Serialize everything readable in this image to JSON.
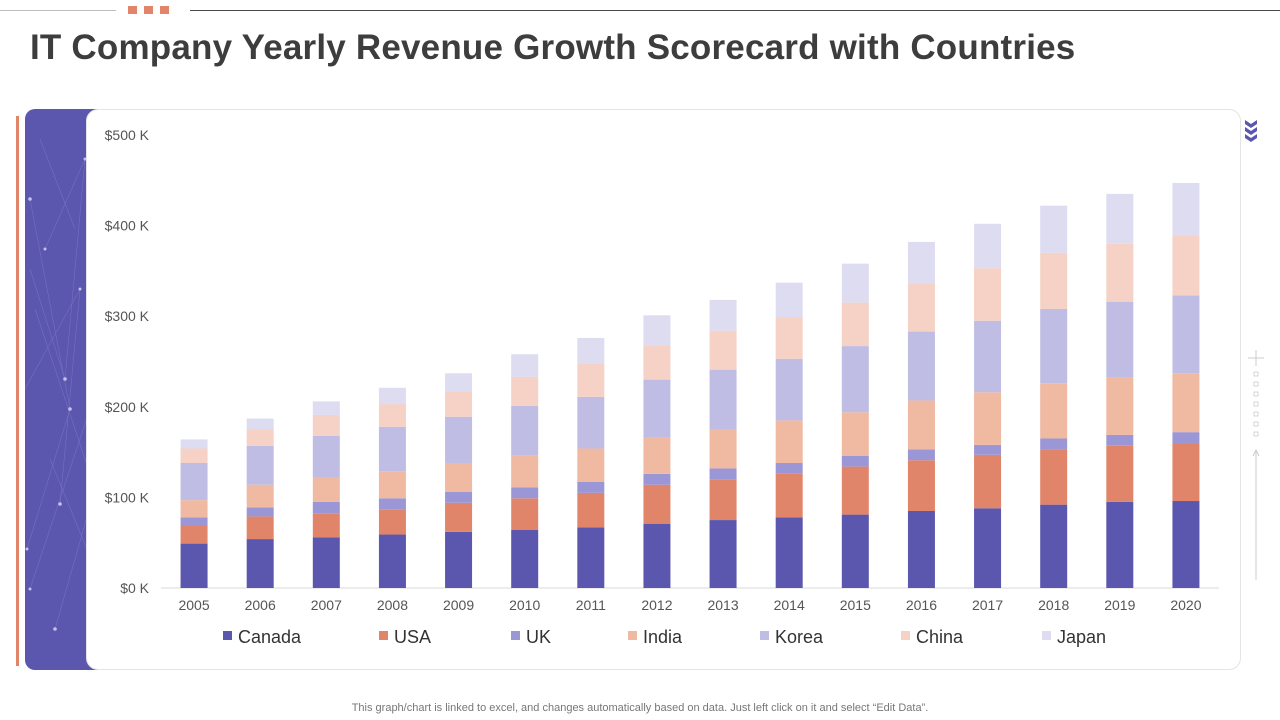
{
  "title": "IT Company Yearly Revenue Growth Scorecard with Countries",
  "footnote": "This graph/chart is linked to excel,  and changes automatically based on data. Just left click on it and select “Edit Data”.",
  "colors": {
    "accent": "#e0856a",
    "panel": "#5b56ae",
    "title": "#3d3d3d"
  },
  "chart_data": {
    "type": "bar",
    "stacked": true,
    "title": "",
    "xlabel": "",
    "ylabel": "",
    "ylim": [
      0,
      500
    ],
    "yticks": [
      0,
      100,
      200,
      300,
      400,
      500
    ],
    "ytick_labels": [
      "$0 K",
      "$100 K",
      "$200 K",
      "$300 K",
      "$400 K",
      "$500 K"
    ],
    "legend_position": "bottom",
    "grid": false,
    "categories": [
      "2005",
      "2006",
      "2007",
      "2008",
      "2009",
      "2010",
      "2011",
      "2012",
      "2013",
      "2014",
      "2015",
      "2016",
      "2017",
      "2018",
      "2019",
      "2020"
    ],
    "series": [
      {
        "name": "Canada",
        "color": "#5b56ae",
        "values": [
          49,
          54,
          56,
          59,
          62,
          64,
          67,
          71,
          75,
          78,
          81,
          85,
          88,
          92,
          95,
          96
        ]
      },
      {
        "name": "USA",
        "color": "#e0856a",
        "values": [
          20,
          25,
          26,
          28,
          32,
          35,
          38,
          43,
          45,
          48,
          53,
          56,
          59,
          61,
          62,
          64
        ]
      },
      {
        "name": "UK",
        "color": "#9b97d6",
        "values": [
          9,
          10,
          13,
          12,
          12,
          12,
          12,
          12,
          12,
          12,
          12,
          12,
          11,
          12,
          12,
          12
        ]
      },
      {
        "name": "India",
        "color": "#f0b9a2",
        "values": [
          19,
          25,
          27,
          30,
          32,
          35,
          37,
          40,
          43,
          47,
          48,
          54,
          58,
          61,
          63,
          65
        ]
      },
      {
        "name": "Korea",
        "color": "#bfbde4",
        "values": [
          41,
          43,
          46,
          49,
          51,
          55,
          57,
          64,
          66,
          68,
          73,
          76,
          79,
          82,
          84,
          86
        ]
      },
      {
        "name": "China",
        "color": "#f6d1c5",
        "values": [
          16,
          18,
          23,
          25,
          28,
          32,
          37,
          38,
          43,
          46,
          48,
          53,
          58,
          62,
          64,
          66
        ]
      },
      {
        "name": "Japan",
        "color": "#dedcf0",
        "values": [
          10,
          12,
          15,
          18,
          20,
          25,
          28,
          33,
          34,
          38,
          43,
          46,
          49,
          52,
          55,
          58
        ]
      }
    ]
  }
}
